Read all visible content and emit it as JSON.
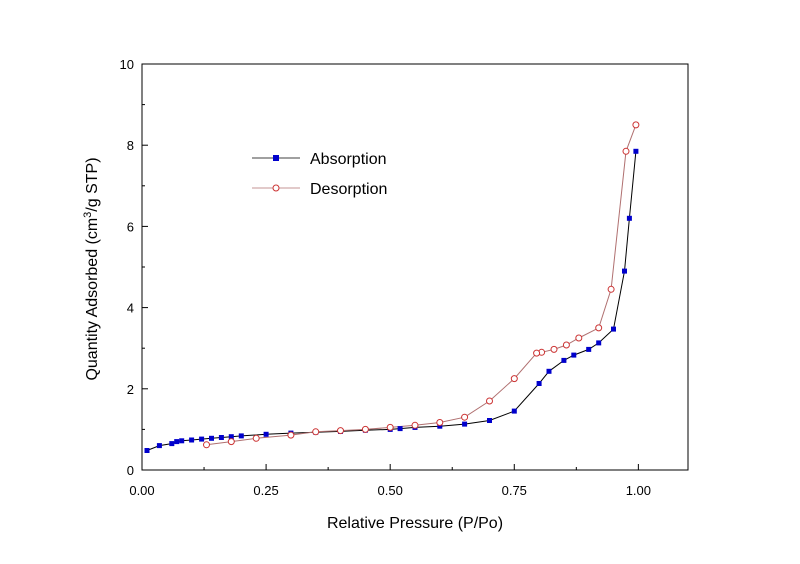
{
  "chart_data": {
    "type": "line",
    "title": "",
    "xlabel": "Relative Pressure (P/Po)",
    "ylabel_parts": {
      "before": "Quantity Adsorbed (cm",
      "sup": "3",
      "after": "/g  STP)"
    },
    "xlim": [
      0,
      1.1
    ],
    "ylim": [
      0,
      10
    ],
    "xticks": [
      0,
      0.25,
      0.5,
      0.75,
      1.0
    ],
    "xtick_labels": [
      "0.00",
      "0.25",
      "0.50",
      "0.75",
      "1.00"
    ],
    "yticks": [
      0,
      2,
      4,
      6,
      8,
      10
    ],
    "ytick_labels": [
      "0",
      "2",
      "4",
      "6",
      "8",
      "10"
    ],
    "grid": false,
    "legend_position": "upper-left",
    "series": [
      {
        "name": "Absorption",
        "marker": "filled-square",
        "marker_color": "#0000cc",
        "line_color": "#000000",
        "x": [
          0.01,
          0.035,
          0.06,
          0.07,
          0.08,
          0.1,
          0.12,
          0.14,
          0.16,
          0.18,
          0.2,
          0.25,
          0.3,
          0.35,
          0.4,
          0.45,
          0.5,
          0.52,
          0.55,
          0.6,
          0.65,
          0.7,
          0.75,
          0.8,
          0.82,
          0.85,
          0.87,
          0.9,
          0.92,
          0.95,
          0.972,
          0.982,
          0.995
        ],
        "y": [
          0.48,
          0.6,
          0.65,
          0.7,
          0.72,
          0.74,
          0.76,
          0.78,
          0.8,
          0.82,
          0.84,
          0.88,
          0.91,
          0.93,
          0.95,
          0.98,
          1.0,
          1.02,
          1.05,
          1.08,
          1.13,
          1.22,
          1.45,
          2.13,
          2.43,
          2.7,
          2.83,
          2.97,
          3.13,
          3.47,
          4.9,
          6.2,
          7.85
        ]
      },
      {
        "name": "Desorption",
        "marker": "open-circle",
        "marker_color": "#cc3333",
        "line_color": "#b07070",
        "x": [
          0.995,
          0.975,
          0.945,
          0.92,
          0.88,
          0.855,
          0.83,
          0.805,
          0.795,
          0.75,
          0.7,
          0.65,
          0.6,
          0.55,
          0.5,
          0.45,
          0.4,
          0.35,
          0.3,
          0.23,
          0.18,
          0.13
        ],
        "y": [
          8.5,
          7.85,
          4.45,
          3.5,
          3.25,
          3.08,
          2.97,
          2.9,
          2.88,
          2.25,
          1.7,
          1.3,
          1.17,
          1.1,
          1.05,
          1.0,
          0.97,
          0.94,
          0.86,
          0.78,
          0.7,
          0.62
        ]
      }
    ]
  }
}
